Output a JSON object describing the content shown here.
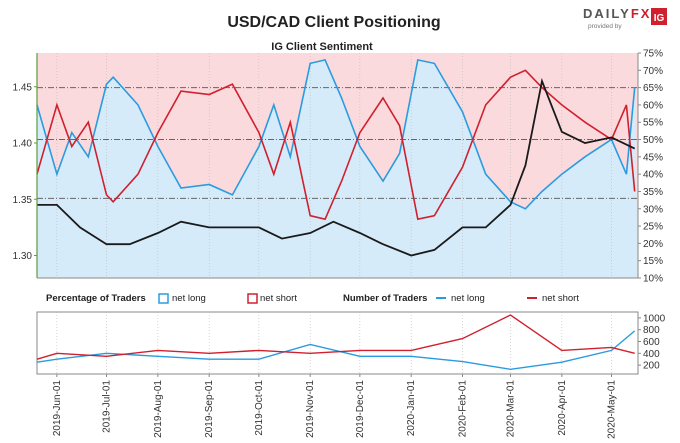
{
  "header": {
    "title": "USD/CAD Client Positioning",
    "brand_prefix": "DAILY",
    "brand_fx": "FX",
    "brand_provided": "provided by",
    "brand_badge": "IG"
  },
  "colors": {
    "long": "#2b9be0",
    "short": "#d0202e",
    "price": "#1a1a1a",
    "long_fill": "#d6ebf9",
    "short_fill": "#fbdadd",
    "axis_green": "#5a9e3a"
  },
  "chart_data": [
    {
      "type": "line",
      "title": "IG Client Sentiment",
      "x": [
        "2019-06-01",
        "2019-07-01",
        "2019-08-01",
        "2019-09-01",
        "2019-10-01",
        "2019-11-01",
        "2019-12-01",
        "2020-01-01",
        "2020-02-01",
        "2020-03-01",
        "2020-04-01",
        "2020-05-01"
      ],
      "x_tick_labels": [
        "2019-Jun-01",
        "2019-Jul-01",
        "2019-Aug-01",
        "2019-Sep-01",
        "2019-Oct-01",
        "2019-Nov-01",
        "2019-Dec-01",
        "2020-Jan-01",
        "2020-Feb-01",
        "2020-Mar-01",
        "2020-Apr-01",
        "2020-May-01"
      ],
      "y_left_ticks": [
        "1.30",
        "1.35",
        "1.40",
        "1.45"
      ],
      "y_left_lim": [
        1.28,
        1.48
      ],
      "y_right_ticks": [
        "10%",
        "15%",
        "20%",
        "25%",
        "30%",
        "35%",
        "40%",
        "45%",
        "50%",
        "55%",
        "60%",
        "65%",
        "70%",
        "75%"
      ],
      "y_right_lim": [
        10,
        75
      ],
      "reference_lines_pct": [
        33,
        50,
        65
      ],
      "series": [
        {
          "name": "net long",
          "axis": "right",
          "unit": "%",
          "x": [
            "2019-05-20",
            "2019-06-01",
            "2019-06-10",
            "2019-06-20",
            "2019-07-01",
            "2019-07-05",
            "2019-07-20",
            "2019-08-01",
            "2019-08-15",
            "2019-09-01",
            "2019-09-15",
            "2019-10-01",
            "2019-10-10",
            "2019-10-20",
            "2019-11-01",
            "2019-11-10",
            "2019-11-20",
            "2019-12-01",
            "2019-12-15",
            "2019-12-25",
            "2020-01-05",
            "2020-01-15",
            "2020-02-01",
            "2020-02-15",
            "2020-03-01",
            "2020-03-10",
            "2020-03-20",
            "2020-04-01",
            "2020-04-15",
            "2020-05-01",
            "2020-05-10",
            "2020-05-15"
          ],
          "values": [
            60,
            40,
            52,
            45,
            66,
            68,
            60,
            48,
            36,
            37,
            34,
            48,
            60,
            45,
            72,
            73,
            62,
            48,
            38,
            46,
            73,
            72,
            58,
            40,
            32,
            30,
            35,
            40,
            45,
            50,
            40,
            65
          ]
        },
        {
          "name": "net short",
          "axis": "right",
          "unit": "%",
          "x": [
            "2019-05-20",
            "2019-06-01",
            "2019-06-10",
            "2019-06-20",
            "2019-07-01",
            "2019-07-05",
            "2019-07-20",
            "2019-08-01",
            "2019-08-15",
            "2019-09-01",
            "2019-09-15",
            "2019-10-01",
            "2019-10-10",
            "2019-10-20",
            "2019-11-01",
            "2019-11-10",
            "2019-11-20",
            "2019-12-01",
            "2019-12-15",
            "2019-12-25",
            "2020-01-05",
            "2020-01-15",
            "2020-02-01",
            "2020-02-15",
            "2020-03-01",
            "2020-03-10",
            "2020-03-20",
            "2020-04-01",
            "2020-04-15",
            "2020-05-01",
            "2020-05-10",
            "2020-05-15"
          ],
          "values": [
            40,
            60,
            48,
            55,
            34,
            32,
            40,
            52,
            64,
            63,
            66,
            52,
            40,
            55,
            28,
            27,
            38,
            52,
            62,
            54,
            27,
            28,
            42,
            60,
            68,
            70,
            65,
            60,
            55,
            50,
            60,
            35
          ]
        },
        {
          "name": "USD/CAD",
          "axis": "left",
          "x": [
            "2019-05-20",
            "2019-06-01",
            "2019-06-15",
            "2019-07-01",
            "2019-07-15",
            "2019-08-01",
            "2019-08-15",
            "2019-09-01",
            "2019-09-15",
            "2019-10-01",
            "2019-10-15",
            "2019-11-01",
            "2019-11-15",
            "2019-12-01",
            "2019-12-15",
            "2020-01-01",
            "2020-01-15",
            "2020-02-01",
            "2020-02-15",
            "2020-03-01",
            "2020-03-10",
            "2020-03-20",
            "2020-04-01",
            "2020-04-15",
            "2020-05-01",
            "2020-05-15"
          ],
          "values": [
            1.345,
            1.345,
            1.325,
            1.31,
            1.31,
            1.32,
            1.33,
            1.325,
            1.325,
            1.325,
            1.315,
            1.32,
            1.33,
            1.32,
            1.31,
            1.3,
            1.305,
            1.325,
            1.325,
            1.345,
            1.38,
            1.455,
            1.41,
            1.4,
            1.405,
            1.395
          ]
        }
      ]
    },
    {
      "type": "line",
      "legend_percentage": {
        "title": "Percentage of Traders",
        "long": "net long",
        "short": "net short"
      },
      "legend_number": {
        "title": "Number of Traders",
        "long": "net long",
        "short": "net short"
      },
      "y_right_ticks": [
        "200",
        "400",
        "600",
        "800",
        "1000"
      ],
      "y_right_lim": [
        50,
        1100
      ],
      "series": [
        {
          "name": "net long",
          "x": [
            "2019-05-20",
            "2019-06-01",
            "2019-07-01",
            "2019-08-01",
            "2019-09-01",
            "2019-10-01",
            "2019-11-01",
            "2019-12-01",
            "2020-01-01",
            "2020-02-01",
            "2020-03-01",
            "2020-04-01",
            "2020-05-01",
            "2020-05-15"
          ],
          "values": [
            250,
            300,
            400,
            350,
            300,
            300,
            550,
            350,
            350,
            260,
            130,
            250,
            450,
            780
          ]
        },
        {
          "name": "net short",
          "x": [
            "2019-05-20",
            "2019-06-01",
            "2019-07-01",
            "2019-08-01",
            "2019-09-01",
            "2019-10-01",
            "2019-11-01",
            "2019-12-01",
            "2020-01-01",
            "2020-02-01",
            "2020-03-01",
            "2020-04-01",
            "2020-05-01",
            "2020-05-15"
          ],
          "values": [
            300,
            400,
            350,
            450,
            400,
            450,
            400,
            450,
            450,
            650,
            1050,
            450,
            500,
            400
          ]
        }
      ]
    }
  ]
}
